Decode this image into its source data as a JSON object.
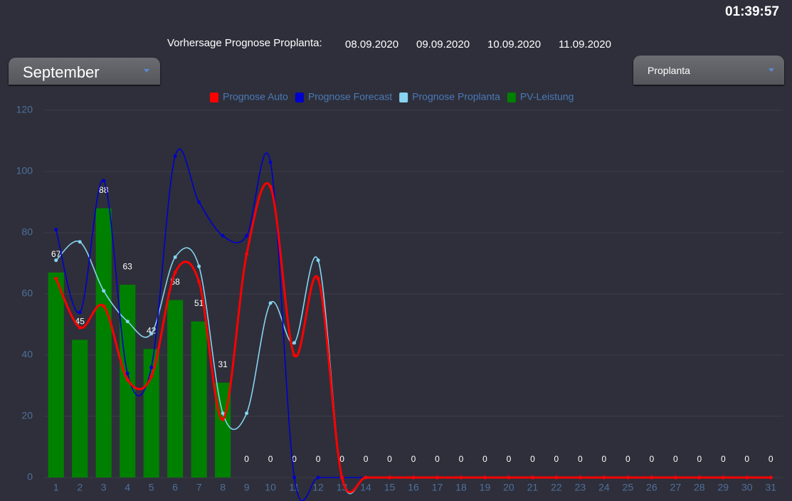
{
  "header": {
    "clock": "01:39:57",
    "forecast_label": "Vorhersage Prognose Proplanta:",
    "dates": [
      "08.09.2020",
      "09.09.2020",
      "10.09.2020",
      "11.09.2020"
    ],
    "month_select": "September",
    "source_select": "Proplanta"
  },
  "chart_data": {
    "type": "bar",
    "categories": [
      "1",
      "2",
      "3",
      "4",
      "5",
      "6",
      "7",
      "8",
      "9",
      "10",
      "11",
      "12",
      "13",
      "14",
      "15",
      "16",
      "17",
      "18",
      "19",
      "20",
      "21",
      "22",
      "23",
      "24",
      "25",
      "26",
      "27",
      "28",
      "29",
      "30",
      "31"
    ],
    "ylim": [
      0,
      120
    ],
    "yticks": [
      0,
      20,
      40,
      60,
      80,
      100,
      120
    ],
    "grid": true,
    "series": [
      {
        "name": "Prognose Auto",
        "type": "line",
        "color": "#ff0000",
        "values": [
          65,
          49,
          56,
          32,
          33,
          67,
          64,
          19,
          73,
          95,
          40,
          65,
          0,
          0,
          0,
          0,
          0,
          0,
          0,
          0,
          0,
          0,
          0,
          0,
          0,
          0,
          0,
          0,
          0,
          0,
          0
        ]
      },
      {
        "name": "Prognose Forecast",
        "type": "line",
        "color": "#0000cc",
        "values": [
          81,
          54,
          97,
          34,
          36,
          105,
          90,
          79,
          79,
          103,
          0,
          0,
          0,
          0,
          0,
          0,
          0,
          0,
          0,
          0,
          0,
          0,
          0,
          0,
          0,
          0,
          0,
          0,
          0,
          0,
          0
        ]
      },
      {
        "name": "Prognose Proplanta",
        "type": "line",
        "color": "#87d3f0",
        "values": [
          71,
          77,
          61,
          51,
          47,
          72,
          69,
          21,
          21,
          57,
          44,
          71,
          0,
          0,
          0,
          0,
          0,
          0,
          0,
          0,
          0,
          0,
          0,
          0,
          0,
          0,
          0,
          0,
          0,
          0,
          0
        ]
      },
      {
        "name": "PV-Leistung",
        "type": "bar",
        "color": "#008000",
        "values": [
          67,
          45,
          88,
          63,
          42,
          58,
          51,
          31,
          0,
          0,
          0,
          0,
          0,
          0,
          0,
          0,
          0,
          0,
          0,
          0,
          0,
          0,
          0,
          0,
          0,
          0,
          0,
          0,
          0,
          0,
          0
        ]
      }
    ]
  }
}
